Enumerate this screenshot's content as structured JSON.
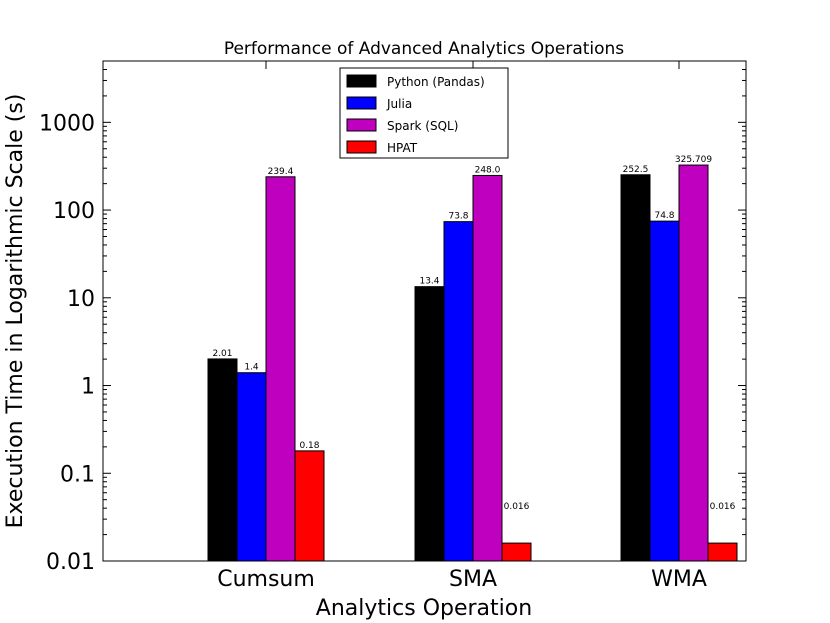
{
  "chart_data": {
    "type": "bar",
    "title": "Performance of Advanced Analytics Operations",
    "xlabel": "Analytics Operation",
    "ylabel": "Execution Time in Logarithmic Scale (s)",
    "yscale": "log",
    "ylim": [
      0.01,
      5000
    ],
    "yticks": [
      {
        "value": 0.01,
        "label": "0.01"
      },
      {
        "value": 0.1,
        "label": "0.1"
      },
      {
        "value": 1,
        "label": "1"
      },
      {
        "value": 10,
        "label": "10"
      },
      {
        "value": 100,
        "label": "100"
      },
      {
        "value": 1000,
        "label": "1000"
      }
    ],
    "categories": [
      "Cumsum",
      "SMA",
      "WMA"
    ],
    "legend_position": "top-center",
    "series": [
      {
        "name": "Python (Pandas)",
        "color": "#000000",
        "values": [
          2.01,
          13.4,
          252.5
        ],
        "labels": [
          "2.01",
          "13.4",
          "252.5"
        ]
      },
      {
        "name": "Julia",
        "color": "#0000ff",
        "values": [
          1.4,
          73.8,
          74.8
        ],
        "labels": [
          "1.4",
          "73.8",
          "74.8"
        ]
      },
      {
        "name": "Spark (SQL)",
        "color": "#bf00bf",
        "values": [
          239.4,
          248.0,
          325.709
        ],
        "labels": [
          "239.4",
          "248.0",
          "325.709"
        ]
      },
      {
        "name": "HPAT",
        "color": "#ff0000",
        "values": [
          0.18,
          0.016,
          0.016
        ],
        "labels": [
          "0.18",
          "0.016",
          "0.016"
        ]
      }
    ]
  }
}
